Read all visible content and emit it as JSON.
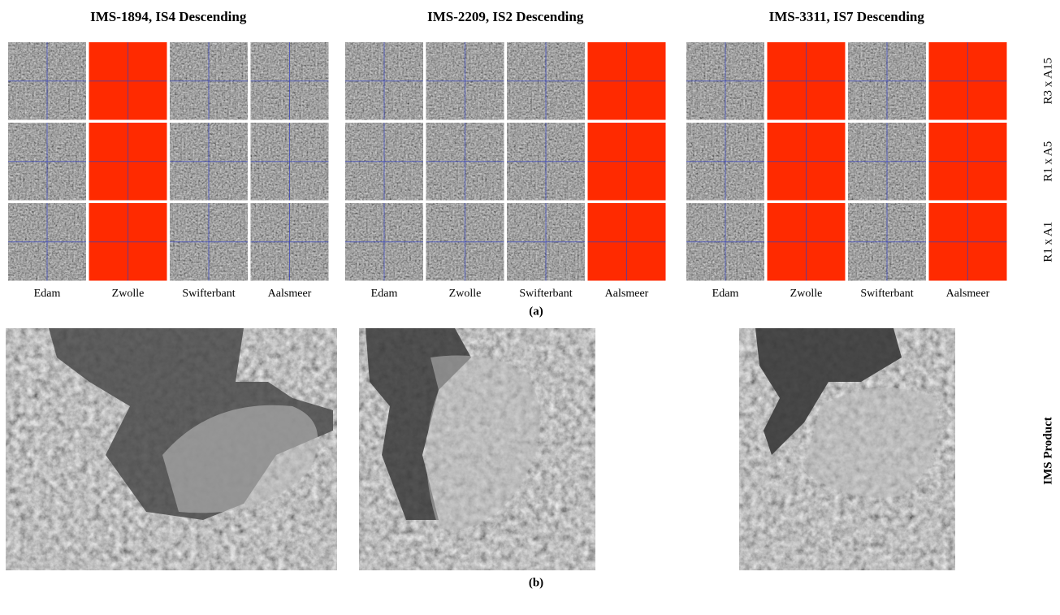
{
  "panels": [
    {
      "title": "IMS-1894, IS4 Descending",
      "columns": [
        "Edam",
        "Zwolle",
        "Swifterbant",
        "Aalsmeer"
      ],
      "missing": [
        false,
        true,
        false,
        false
      ]
    },
    {
      "title": "IMS-2209, IS2 Descending",
      "columns": [
        "Edam",
        "Zwolle",
        "Swifterbant",
        "Aalsmeer"
      ],
      "missing": [
        false,
        false,
        false,
        true
      ]
    },
    {
      "title": "IMS-3311, IS7 Descending",
      "columns": [
        "Edam",
        "Zwolle",
        "Swifterbant",
        "Aalsmeer"
      ],
      "missing": [
        false,
        true,
        false,
        true
      ]
    }
  ],
  "row_labels": [
    "R3 x A15",
    "R1 x A5",
    "R1 x A1"
  ],
  "caption_a": "(a)",
  "caption_b": "(b)",
  "product_label": "IMS Product"
}
